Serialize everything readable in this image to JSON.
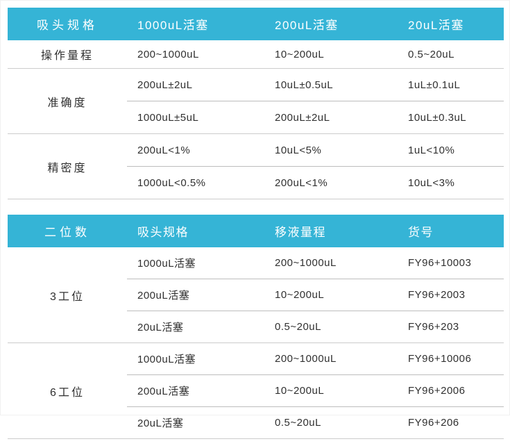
{
  "colors": {
    "header_bg": "#35b4d6",
    "header_text": "#ffffff",
    "body_text": "#303030",
    "divider_outer": "#cccccc",
    "divider_inner": "#bdbdbd"
  },
  "spec_table": {
    "headers": [
      "吸头规格",
      "1000uL活塞",
      "200uL活塞",
      "20uL活塞"
    ],
    "rows": [
      {
        "label": "操作量程",
        "cells": [
          [
            "200~1000uL",
            "10~200uL",
            "0.5~20uL"
          ]
        ]
      },
      {
        "label": "准确度",
        "cells": [
          [
            "200uL±2uL",
            "10uL±0.5uL",
            "1uL±0.1uL"
          ],
          [
            "1000uL±5uL",
            "200uL±2uL",
            "10uL±0.3uL"
          ]
        ]
      },
      {
        "label": "精密度",
        "cells": [
          [
            "200uL<1%",
            "10uL<5%",
            "1uL<10%"
          ],
          [
            "1000uL<0.5%",
            "200uL<1%",
            "10uL<3%"
          ]
        ]
      }
    ]
  },
  "station_table": {
    "headers": [
      "二位数",
      "吸头规格",
      "移液量程",
      "货号"
    ],
    "groups": [
      {
        "label": "3工位",
        "rows": [
          [
            "1000uL活塞",
            "200~1000uL",
            "FY96+10003"
          ],
          [
            "200uL活塞",
            "10~200uL",
            "FY96+2003"
          ],
          [
            "20uL活塞",
            "0.5~20uL",
            "FY96+203"
          ]
        ]
      },
      {
        "label": "6工位",
        "rows": [
          [
            "1000uL活塞",
            "200~1000uL",
            "FY96+10006"
          ],
          [
            "200uL活塞",
            "10~200uL",
            "FY96+2006"
          ],
          [
            "20uL活塞",
            "0.5~20uL",
            "FY96+206"
          ]
        ]
      }
    ]
  }
}
